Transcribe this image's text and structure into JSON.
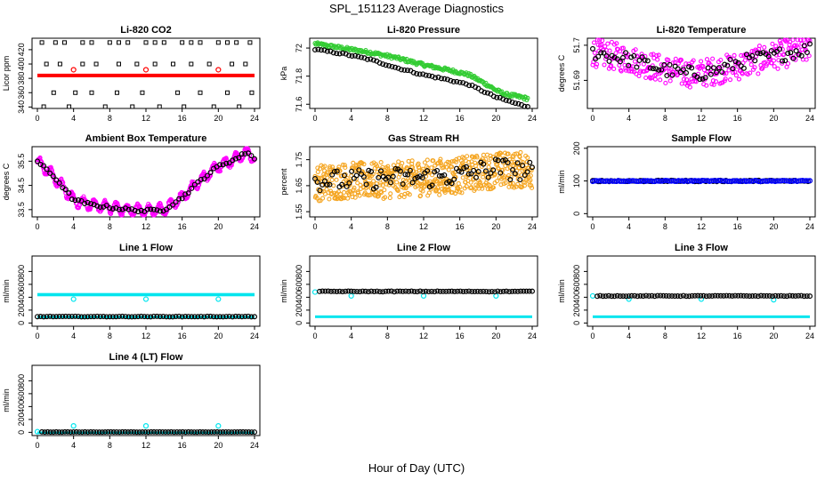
{
  "title": "SPL_151123  Average Diagnostics",
  "xlabel": "Hour of Day (UTC)",
  "colors": {
    "black": "#000000",
    "red": "#ff0000",
    "green": "#33cc33",
    "magenta": "#ff00ff",
    "orange": "#f5a623",
    "blue": "#0000ff",
    "cyan": "#00e5ee"
  },
  "chart_data": [
    {
      "type": "scatter",
      "title": "Li-820 CO2",
      "ylabel": "Licor ppm",
      "xlim": [
        0,
        24
      ],
      "ylim": [
        338,
        436
      ],
      "xticks": [
        0,
        4,
        8,
        12,
        16,
        20,
        24
      ],
      "yticks": [
        340,
        360,
        380,
        400,
        420
      ],
      "series": [
        {
          "color": "red",
          "style": "band",
          "x": [
            0,
            24
          ],
          "y": [
            384,
            384
          ],
          "band": 2.5
        },
        {
          "color": "red",
          "style": "points",
          "x": [
            4,
            12,
            20
          ],
          "y": [
            392,
            392,
            392
          ]
        },
        {
          "color": "black",
          "style": "points",
          "symbol": "square",
          "x": [
            0.5,
            2,
            3,
            5,
            6,
            8,
            9,
            10,
            12,
            13,
            14,
            16,
            17,
            18,
            20,
            21,
            22,
            23.5,
            1,
            2.5,
            5,
            6.5,
            9,
            11,
            13,
            15,
            17,
            19,
            21.5,
            23,
            0.7,
            1.8,
            3.5,
            4.2,
            6,
            7.5,
            8.8,
            10.5,
            11.6,
            13.5,
            15.5,
            16.2,
            18,
            19.5,
            21,
            22.3,
            23.7
          ],
          "y": [
            430,
            430,
            430,
            430,
            430,
            430,
            430,
            430,
            430,
            430,
            430,
            430,
            430,
            430,
            430,
            430,
            430,
            430,
            400,
            400,
            400,
            400,
            400,
            400,
            400,
            400,
            400,
            400,
            400,
            400,
            340,
            360,
            340,
            360,
            360,
            340,
            360,
            340,
            360,
            340,
            360,
            340,
            360,
            340,
            360,
            340,
            360
          ]
        }
      ]
    },
    {
      "type": "scatter",
      "title": "Li-820 Pressure",
      "ylabel": "kPa",
      "xlim": [
        0,
        24
      ],
      "ylim": [
        71.57,
        72.07
      ],
      "xticks": [
        0,
        4,
        8,
        12,
        16,
        20,
        24
      ],
      "yticks": [
        71.6,
        71.8,
        72.0
      ],
      "series": [
        {
          "color": "green",
          "style": "trend",
          "n": 240,
          "x": [
            0,
            3,
            6,
            9,
            12,
            15,
            17,
            19,
            20,
            21,
            22,
            23.5
          ],
          "y": [
            72.03,
            72.0,
            71.97,
            71.93,
            71.88,
            71.84,
            71.81,
            71.74,
            71.7,
            71.67,
            71.66,
            71.64
          ],
          "jitter": 0.012
        },
        {
          "color": "black",
          "style": "trend",
          "n": 70,
          "x": [
            0,
            3,
            6,
            9,
            12,
            15,
            17,
            19,
            20,
            21,
            22,
            23.5
          ],
          "y": [
            71.99,
            71.96,
            71.92,
            71.86,
            71.81,
            71.77,
            71.74,
            71.68,
            71.65,
            71.63,
            71.61,
            71.58
          ],
          "jitter": 0.006
        }
      ]
    },
    {
      "type": "scatter",
      "title": "Li-820 Temperature",
      "ylabel": "degrees C",
      "xlim": [
        0,
        24
      ],
      "ylim": [
        51.682,
        51.702
      ],
      "xticks": [
        0,
        4,
        8,
        12,
        16,
        20,
        24
      ],
      "yticks": [
        51.69,
        51.7
      ],
      "series": [
        {
          "color": "magenta",
          "style": "trend",
          "n": 320,
          "x": [
            0,
            4,
            8,
            10,
            12,
            14,
            16,
            20,
            24
          ],
          "y": [
            51.698,
            51.696,
            51.693,
            51.692,
            51.692,
            51.693,
            51.694,
            51.697,
            51.699
          ],
          "jitter": 0.004
        },
        {
          "color": "black",
          "style": "trend",
          "n": 80,
          "x": [
            0,
            4,
            8,
            10,
            12,
            14,
            16,
            20,
            24
          ],
          "y": [
            51.698,
            51.696,
            51.693,
            51.692,
            51.692,
            51.693,
            51.695,
            51.697,
            51.699
          ],
          "jitter": 0.002
        }
      ]
    },
    {
      "type": "scatter",
      "title": "Ambient Box Temperature",
      "ylabel": "degrees C",
      "xlim": [
        0,
        24
      ],
      "ylim": [
        33.2,
        36.1
      ],
      "xticks": [
        0,
        4,
        8,
        12,
        16,
        20,
        24
      ],
      "yticks": [
        33.5,
        34.5,
        35.5
      ],
      "series": [
        {
          "color": "magenta",
          "style": "wave",
          "n": 400,
          "x": [
            0,
            2,
            4,
            6,
            8,
            10,
            12,
            14,
            16,
            18,
            20,
            22,
            23.2,
            24
          ],
          "y": [
            35.5,
            34.8,
            33.9,
            33.7,
            33.6,
            33.5,
            33.45,
            33.5,
            34.0,
            34.7,
            35.3,
            35.6,
            35.9,
            35.6
          ],
          "amp": 0.22,
          "period": 1.2
        },
        {
          "color": "black",
          "style": "trend",
          "n": 70,
          "x": [
            0,
            2,
            4,
            6,
            8,
            10,
            12,
            14,
            16,
            18,
            20,
            22,
            23.2,
            24
          ],
          "y": [
            35.5,
            34.8,
            33.9,
            33.7,
            33.6,
            33.5,
            33.45,
            33.5,
            34.0,
            34.7,
            35.3,
            35.6,
            35.9,
            35.6
          ],
          "jitter": 0.06
        }
      ]
    },
    {
      "type": "scatter",
      "title": "Gas Stream RH",
      "ylabel": "percent",
      "xlim": [
        0,
        24
      ],
      "ylim": [
        1.53,
        1.8
      ],
      "xticks": [
        0,
        4,
        8,
        12,
        16,
        20,
        24
      ],
      "yticks": [
        1.55,
        1.65,
        1.75
      ],
      "series": [
        {
          "color": "orange",
          "style": "trend",
          "n": 600,
          "x": [
            0,
            4,
            8,
            12,
            16,
            20,
            24
          ],
          "y": [
            1.66,
            1.67,
            1.67,
            1.68,
            1.69,
            1.71,
            1.71
          ],
          "jitter": 0.07
        },
        {
          "color": "black",
          "style": "trend",
          "n": 90,
          "x": [
            0,
            4,
            8,
            12,
            16,
            20,
            24
          ],
          "y": [
            1.67,
            1.67,
            1.68,
            1.68,
            1.69,
            1.72,
            1.7
          ],
          "jitter": 0.04
        }
      ]
    },
    {
      "type": "scatter",
      "title": "Sample Flow",
      "ylabel": "ml/min",
      "xlim": [
        0,
        24
      ],
      "ylim": [
        -10,
        205
      ],
      "xticks": [
        0,
        4,
        8,
        12,
        16,
        20,
        24
      ],
      "yticks": [
        0,
        100,
        200
      ],
      "series": [
        {
          "color": "black",
          "style": "trend",
          "n": 120,
          "x": [
            0,
            24
          ],
          "y": [
            100,
            100
          ],
          "jitter": 2
        },
        {
          "color": "blue",
          "style": "trend",
          "n": 120,
          "x": [
            0,
            24
          ],
          "y": [
            100,
            100
          ],
          "jitter": 1.5
        }
      ]
    },
    {
      "type": "scatter",
      "title": "Line 1 Flow",
      "ylabel": "ml/min",
      "xlim": [
        0,
        24
      ],
      "ylim": [
        -50,
        1040
      ],
      "xticks": [
        0,
        4,
        8,
        12,
        16,
        20,
        24
      ],
      "yticks": [
        0,
        200,
        400,
        600,
        800
      ],
      "series": [
        {
          "color": "cyan",
          "style": "band",
          "x": [
            0,
            24
          ],
          "y": [
            440,
            440
          ],
          "band": 25
        },
        {
          "color": "cyan",
          "style": "band",
          "x": [
            0,
            24
          ],
          "y": [
            100,
            100
          ],
          "band": 12
        },
        {
          "color": "cyan",
          "style": "points",
          "x": [
            4,
            12,
            20
          ],
          "y": [
            370,
            370,
            370
          ]
        },
        {
          "color": "black",
          "style": "trend",
          "n": 70,
          "x": [
            0,
            24
          ],
          "y": [
            100,
            100
          ],
          "jitter": 4
        }
      ]
    },
    {
      "type": "scatter",
      "title": "Line 2 Flow",
      "ylabel": "ml/min",
      "xlim": [
        0,
        24
      ],
      "ylim": [
        -50,
        1040
      ],
      "xticks": [
        0,
        4,
        8,
        12,
        16,
        20,
        24
      ],
      "yticks": [
        0,
        200,
        400,
        600,
        800
      ],
      "series": [
        {
          "color": "cyan",
          "style": "band",
          "x": [
            0,
            24
          ],
          "y": [
            100,
            100
          ],
          "band": 18
        },
        {
          "color": "cyan",
          "style": "points",
          "x": [
            0,
            4,
            12,
            20
          ],
          "y": [
            480,
            420,
            420,
            420
          ]
        },
        {
          "color": "black",
          "style": "trend",
          "n": 75,
          "x": [
            0.5,
            24
          ],
          "y": [
            490,
            490
          ],
          "jitter": 5
        }
      ]
    },
    {
      "type": "scatter",
      "title": "Line 3 Flow",
      "ylabel": "ml/min",
      "xlim": [
        0,
        24
      ],
      "ylim": [
        -50,
        1040
      ],
      "xticks": [
        0,
        4,
        8,
        12,
        16,
        20,
        24
      ],
      "yticks": [
        0,
        200,
        400,
        600,
        800
      ],
      "series": [
        {
          "color": "cyan",
          "style": "band",
          "x": [
            0,
            24
          ],
          "y": [
            100,
            100
          ],
          "band": 18
        },
        {
          "color": "cyan",
          "style": "points",
          "x": [
            0,
            4,
            12,
            20
          ],
          "y": [
            420,
            370,
            370,
            360
          ]
        },
        {
          "color": "black",
          "style": "trend",
          "n": 75,
          "x": [
            0.5,
            24
          ],
          "y": [
            420,
            420
          ],
          "jitter": 5
        }
      ]
    },
    {
      "type": "scatter",
      "title": "Line 4 (LT) Flow",
      "ylabel": "ml/min",
      "xlim": [
        0,
        24
      ],
      "ylim": [
        -50,
        1040
      ],
      "xticks": [
        0,
        4,
        8,
        12,
        16,
        20,
        24
      ],
      "yticks": [
        0,
        200,
        400,
        600,
        800
      ],
      "series": [
        {
          "color": "cyan",
          "style": "band",
          "x": [
            0,
            24
          ],
          "y": [
            5,
            5
          ],
          "band": 8
        },
        {
          "color": "cyan",
          "style": "points",
          "x": [
            0,
            4,
            12,
            20
          ],
          "y": [
            10,
            100,
            100,
            100
          ]
        },
        {
          "color": "black",
          "style": "trend",
          "n": 75,
          "x": [
            0.5,
            24
          ],
          "y": [
            5,
            5
          ],
          "jitter": 2
        }
      ]
    }
  ]
}
